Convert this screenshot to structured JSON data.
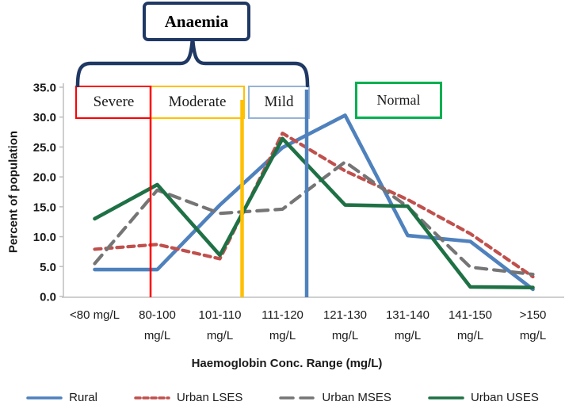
{
  "chart_data": {
    "type": "line",
    "categories": [
      "<80 mg/L",
      "80-100 mg/L",
      "101-110 mg/L",
      "111-120 mg/L",
      "121-130 mg/L",
      "131-140 mg/L",
      "141-150 mg/L",
      ">150 mg/L"
    ],
    "x_tick_lines": [
      [
        "<80 mg/L"
      ],
      [
        "80-100",
        "mg/L"
      ],
      [
        "101-110",
        "mg/L"
      ],
      [
        "111-120",
        "mg/L"
      ],
      [
        "121-130",
        "mg/L"
      ],
      [
        "131-140",
        "mg/L"
      ],
      [
        "141-150",
        "mg/L"
      ],
      [
        ">150",
        "mg/L"
      ]
    ],
    "y_ticks": [
      "35.0",
      "30.0",
      "25.0",
      "20.0",
      "15.0",
      "10.0",
      "5.0",
      "0.0"
    ],
    "ylim": [
      0,
      35
    ],
    "xlabel": "Haemoglobin Conc. Range (mg/L)",
    "ylabel": "Percent of population",
    "grid": false,
    "legend_position": "bottom",
    "series": [
      {
        "name": "Rural",
        "color": "#4F81BD",
        "dash": "solid",
        "values": [
          4.5,
          4.5,
          15.3,
          24.9,
          30.3,
          10.2,
          9.2,
          1.2
        ]
      },
      {
        "name": "Urban LSES",
        "color": "#C0504D",
        "dash": "dashed",
        "values": [
          7.9,
          8.7,
          6.3,
          27.3,
          21.0,
          16.2,
          10.5,
          3.3
        ]
      },
      {
        "name": "Urban MSES",
        "color": "#757575",
        "dash": "long-dash",
        "values": [
          5.5,
          17.8,
          13.9,
          14.6,
          22.5,
          15.0,
          4.9,
          3.7
        ]
      },
      {
        "name": "Urban USES",
        "color": "#1F7145",
        "dash": "solid",
        "values": [
          13.0,
          18.7,
          6.9,
          26.4,
          15.3,
          15.1,
          1.6,
          1.5
        ]
      }
    ],
    "annotations": {
      "anaemia": {
        "label": "Anaemia",
        "border_color": "#1F3864"
      },
      "zones": [
        {
          "label": "Severe",
          "box_color": "#FF0000",
          "line_color": "#FF0000"
        },
        {
          "label": "Moderate",
          "box_color": "#FFC000",
          "line_color": "#FFC000"
        },
        {
          "label": "Mild",
          "box_color": "#95B3D7",
          "line_color": "#4F81BD"
        },
        {
          "label": "Normal",
          "box_color": "#00B050",
          "line_color": null
        }
      ]
    }
  }
}
